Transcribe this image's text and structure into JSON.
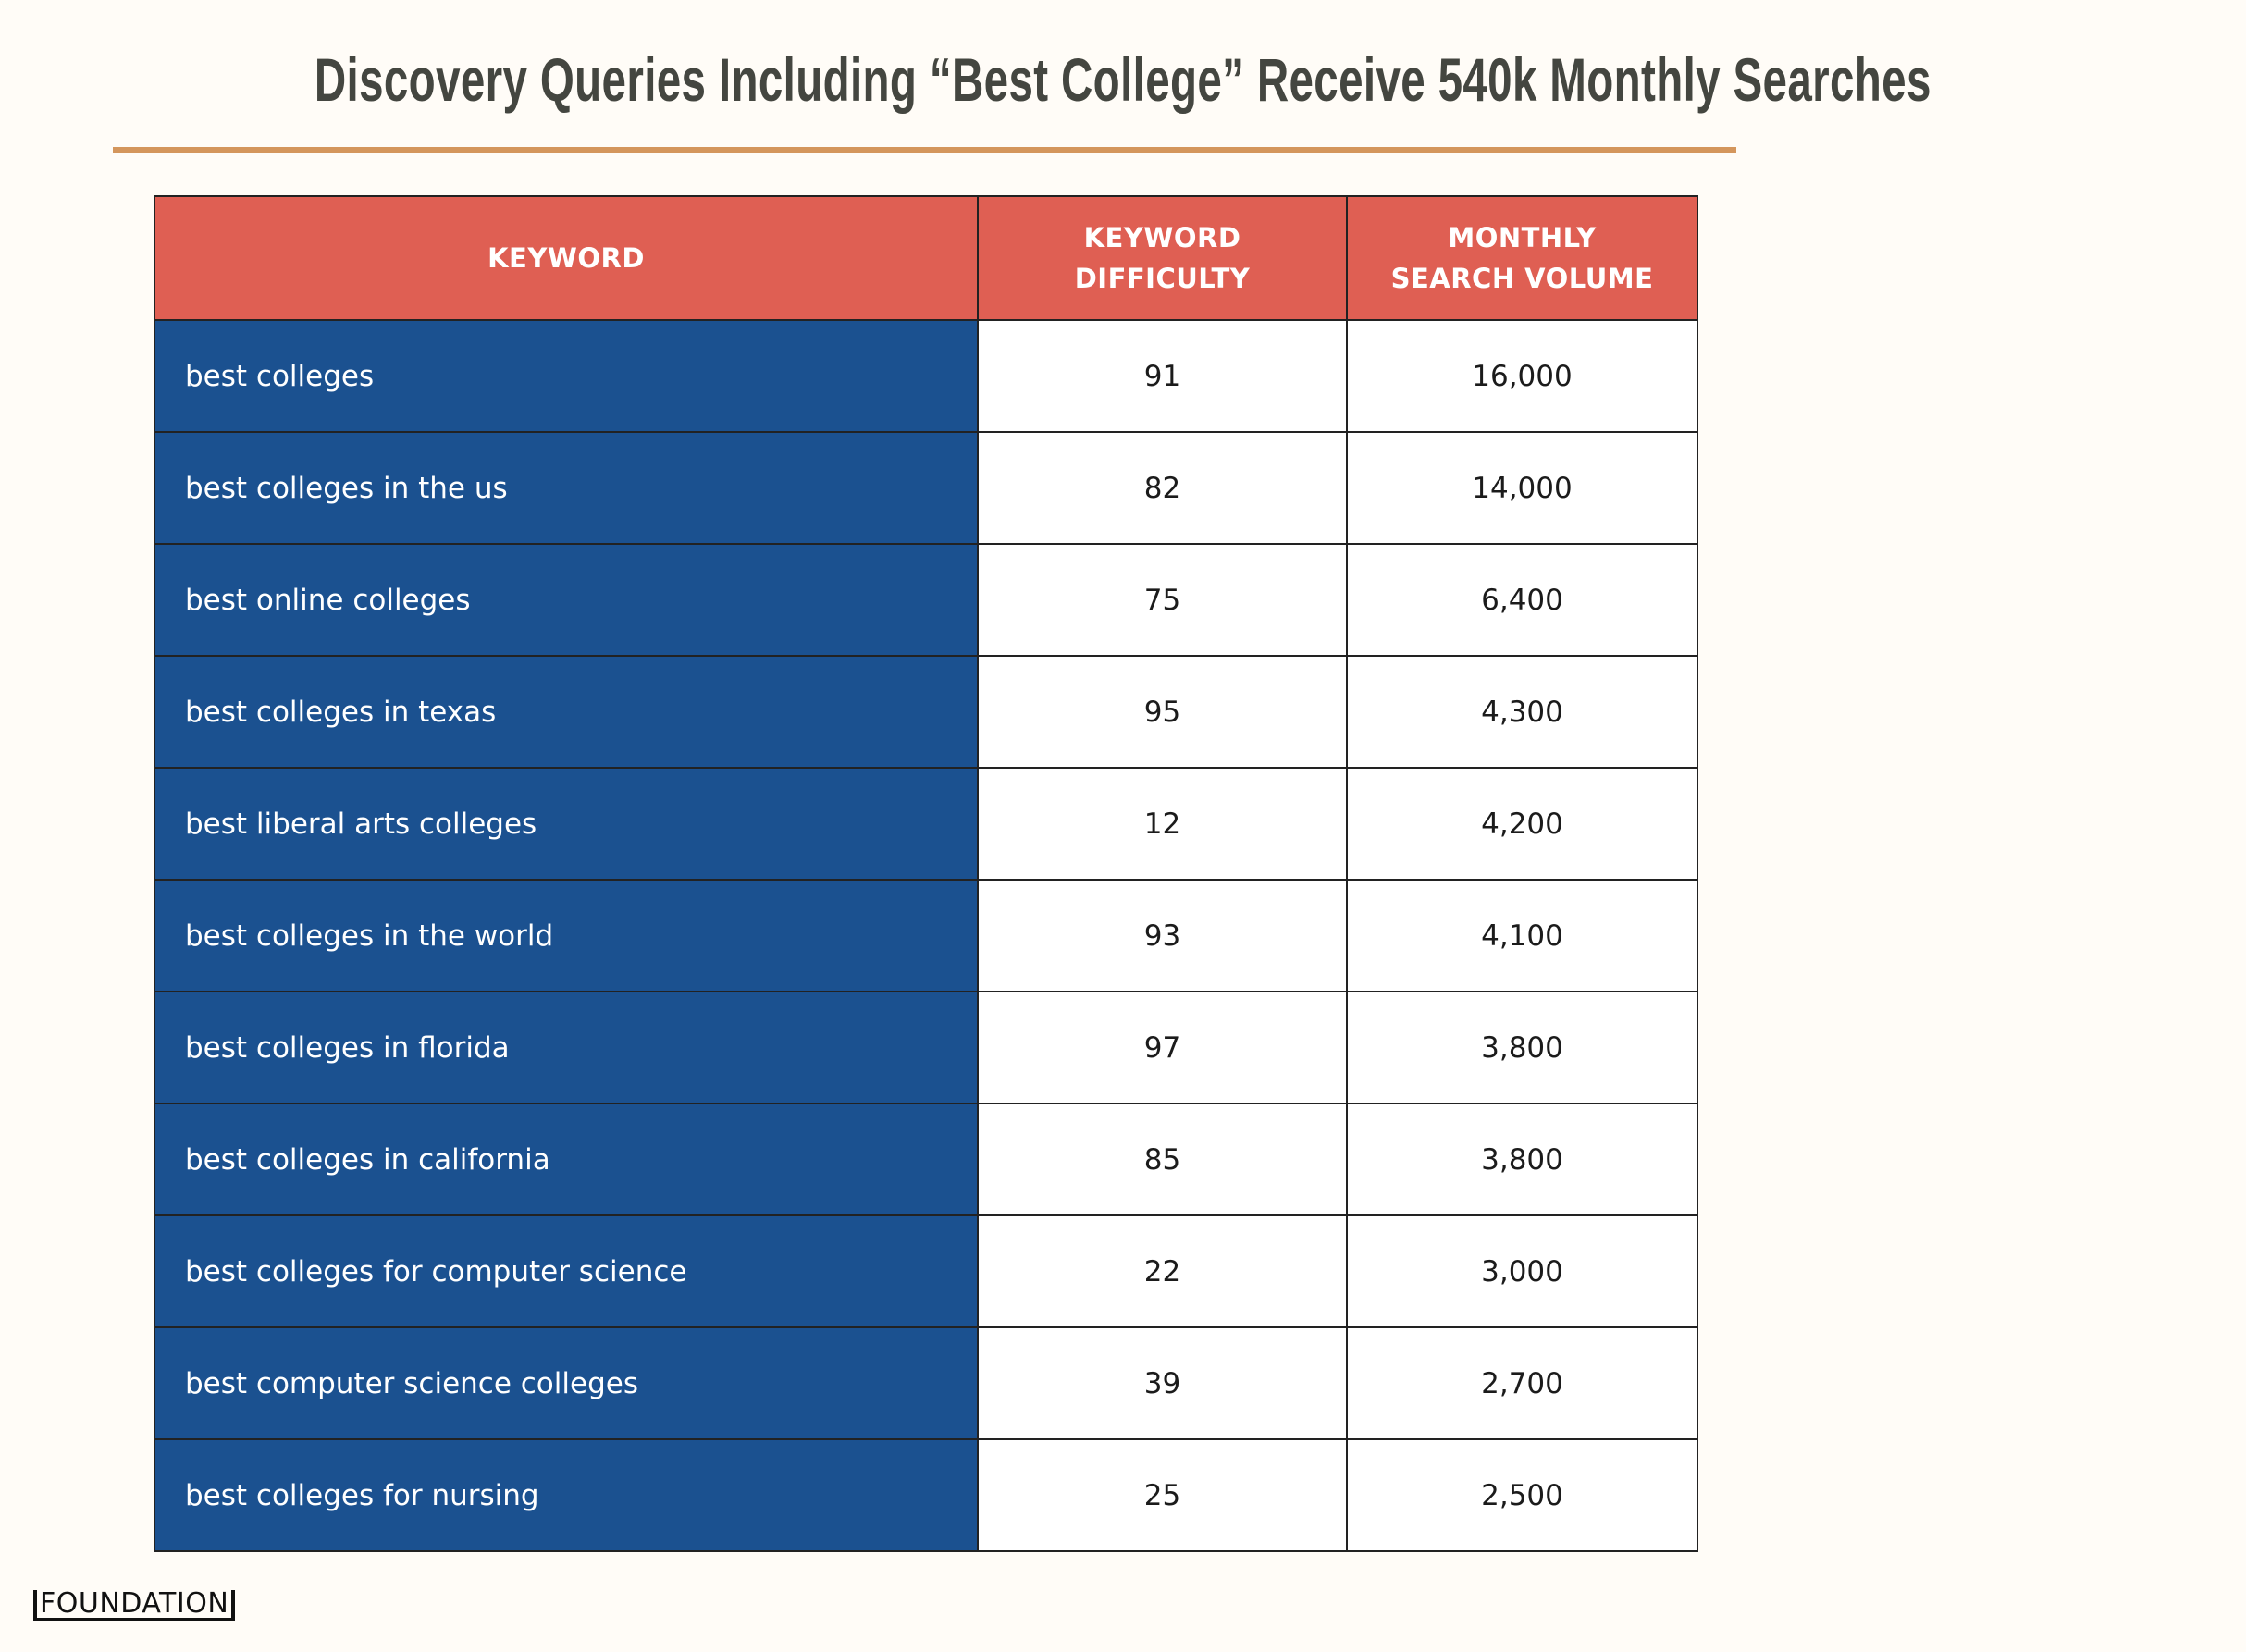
{
  "title": "Discovery Queries Including “Best College” Receive 540k Monthly Searches",
  "colors": {
    "background": "#fffcf7",
    "header": "#df5f53",
    "keyword_cell": "#1b5190",
    "rule": "#d4965c",
    "title": "#444640"
  },
  "table": {
    "headers": [
      [
        "KEYWORD"
      ],
      [
        "KEYWORD",
        "DIFFICULTY"
      ],
      [
        "MONTHLY",
        "SEARCH VOLUME"
      ]
    ],
    "rows": [
      {
        "keyword": "best colleges",
        "difficulty": "91",
        "volume": "16,000"
      },
      {
        "keyword": "best colleges in the us",
        "difficulty": "82",
        "volume": "14,000"
      },
      {
        "keyword": "best online colleges",
        "difficulty": "75",
        "volume": "6,400"
      },
      {
        "keyword": "best colleges in texas",
        "difficulty": "95",
        "volume": "4,300"
      },
      {
        "keyword": "best liberal arts colleges",
        "difficulty": "12",
        "volume": "4,200"
      },
      {
        "keyword": "best colleges in the world",
        "difficulty": "93",
        "volume": "4,100"
      },
      {
        "keyword": "best colleges in florida",
        "difficulty": "97",
        "volume": "3,800"
      },
      {
        "keyword": "best colleges in california",
        "difficulty": "85",
        "volume": "3,800"
      },
      {
        "keyword": "best colleges for computer science",
        "difficulty": "22",
        "volume": "3,000"
      },
      {
        "keyword": "best computer science colleges",
        "difficulty": "39",
        "volume": "2,700"
      },
      {
        "keyword": "best colleges for nursing",
        "difficulty": "25",
        "volume": "2,500"
      }
    ]
  },
  "logo": "FOUNDATION"
}
